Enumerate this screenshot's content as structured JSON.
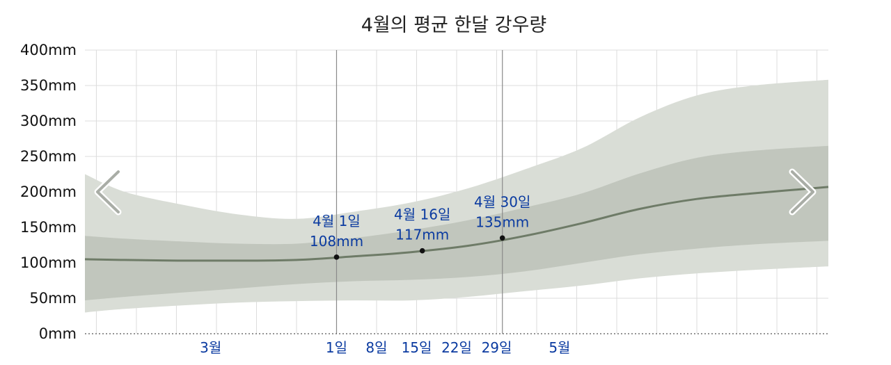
{
  "chart_data": {
    "type": "area",
    "title": "4월의 평균 한달 강우량",
    "xlabel": "",
    "ylabel": "",
    "y_unit": "mm",
    "ylim": [
      0,
      400
    ],
    "yticks": [
      "0mm",
      "50mm",
      "100mm",
      "150mm",
      "200mm",
      "250mm",
      "300mm",
      "350mm",
      "400mm"
    ],
    "ytick_values": [
      0,
      50,
      100,
      150,
      200,
      250,
      300,
      350,
      400
    ],
    "x_axis": "day of year",
    "xlim": [
      53,
      183
    ],
    "x_month_labels": [
      {
        "label": "3월",
        "day": 75
      },
      {
        "label": "5월",
        "day": 136
      }
    ],
    "x_day_labels": [
      {
        "label": "1일",
        "day": 97
      },
      {
        "label": "8일",
        "day": 104
      },
      {
        "label": "15일",
        "day": 111
      },
      {
        "label": "22일",
        "day": 118
      },
      {
        "label": "29일",
        "day": 125
      }
    ],
    "vertical_markers": [
      97,
      126
    ],
    "grid": true,
    "colors": {
      "outer_band": "#d9ddd6",
      "inner_band": "#c1c6bd",
      "median_line": "#6e7b67",
      "tick_label_blue": "#0a3aa0",
      "annotation_blue": "#0a3aa0",
      "grid": "#dcdcdc"
    },
    "series": [
      {
        "role": "p10",
        "x": [
          53,
          60,
          70,
          80,
          90,
          100,
          110,
          120,
          130,
          140,
          150,
          160,
          170,
          183
        ],
        "values": [
          30,
          35,
          40,
          44,
          46,
          47,
          47,
          52,
          60,
          68,
          78,
          85,
          90,
          95
        ]
      },
      {
        "role": "p25",
        "x": [
          53,
          60,
          70,
          80,
          90,
          100,
          110,
          120,
          130,
          140,
          150,
          160,
          170,
          183
        ],
        "values": [
          47,
          52,
          58,
          64,
          70,
          74,
          76,
          80,
          88,
          100,
          112,
          120,
          126,
          131
        ]
      },
      {
        "role": "median",
        "x": [
          53,
          60,
          70,
          80,
          90,
          100,
          110,
          120,
          130,
          140,
          150,
          160,
          170,
          183
        ],
        "values": [
          105,
          104,
          103,
          103,
          104,
          109,
          115,
          124,
          138,
          156,
          176,
          190,
          198,
          207
        ]
      },
      {
        "role": "p75",
        "x": [
          53,
          60,
          70,
          80,
          90,
          100,
          110,
          120,
          130,
          140,
          150,
          160,
          170,
          183
        ],
        "values": [
          138,
          134,
          130,
          127,
          127,
          135,
          146,
          160,
          178,
          198,
          226,
          248,
          258,
          265
        ]
      },
      {
        "role": "p90",
        "x": [
          53,
          60,
          70,
          80,
          90,
          100,
          110,
          120,
          130,
          140,
          150,
          160,
          170,
          183
        ],
        "values": [
          225,
          200,
          182,
          168,
          162,
          172,
          185,
          205,
          232,
          262,
          305,
          336,
          350,
          358
        ]
      }
    ],
    "annotations": [
      {
        "date": "4월 1일",
        "value": "108mm",
        "day": 97,
        "y": 108
      },
      {
        "date": "4월 16일",
        "value": "117mm",
        "day": 112,
        "y": 117
      },
      {
        "date": "4월 30일",
        "value": "135mm",
        "day": 126,
        "y": 135
      }
    ],
    "nav": {
      "prev_icon": "chevron-left-icon",
      "next_icon": "chevron-right-icon"
    }
  }
}
